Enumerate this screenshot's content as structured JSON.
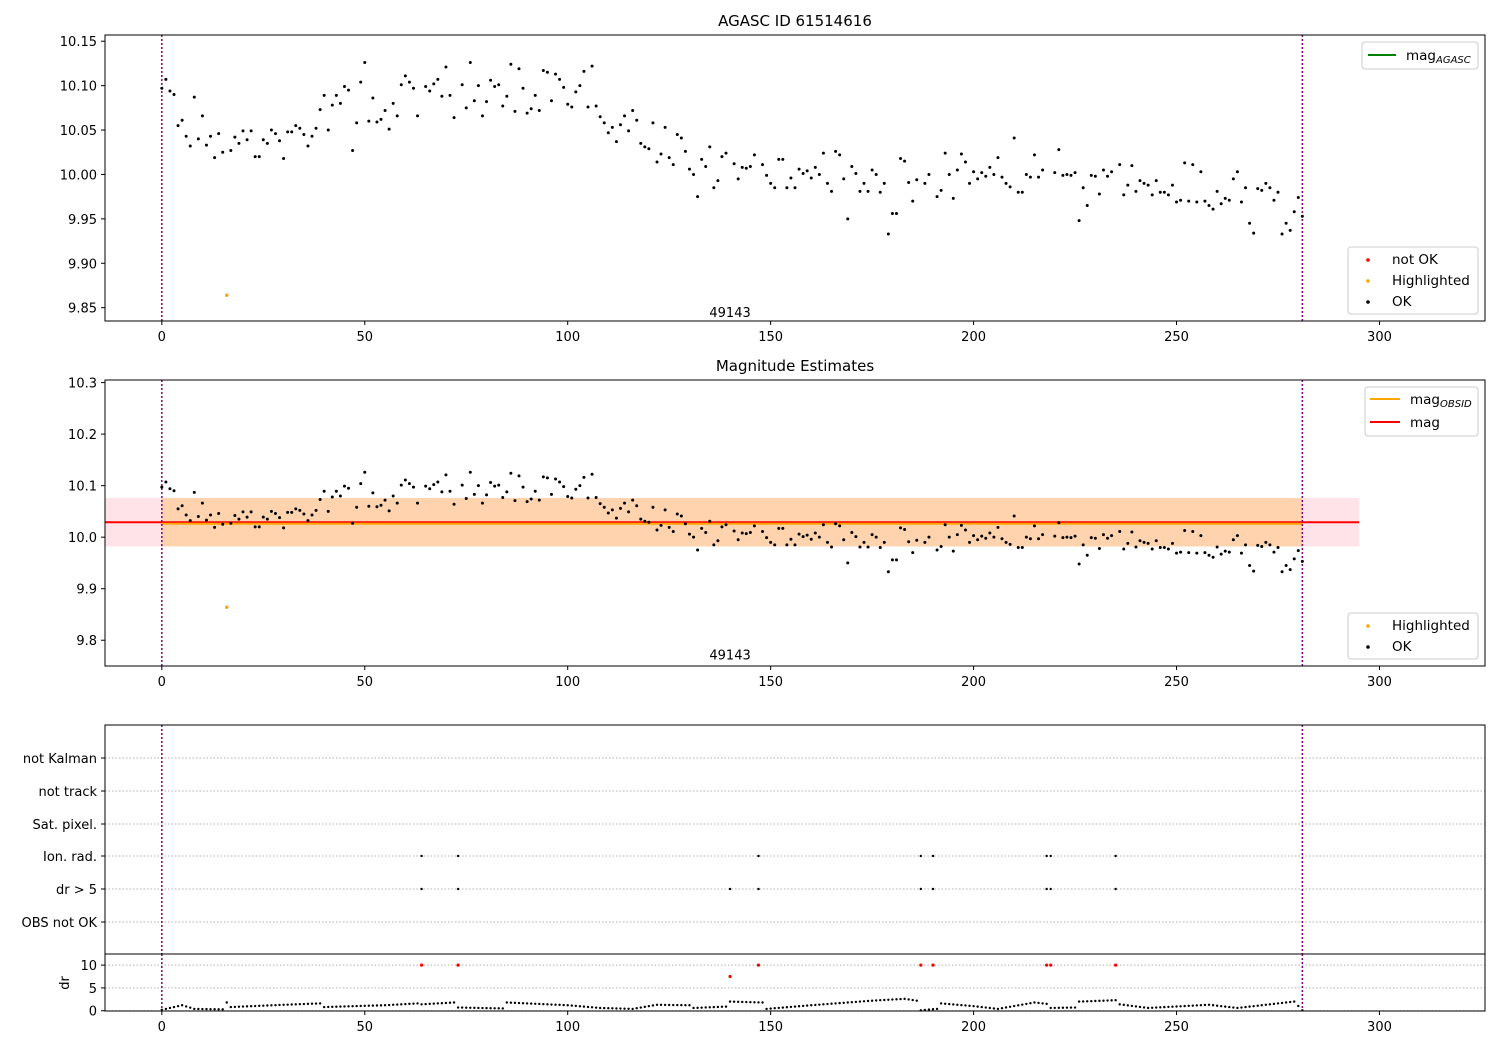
{
  "chart_data": [
    {
      "type": "scatter",
      "title": "AGASC ID 61514616",
      "xlim": [
        -14,
        326
      ],
      "ylim": [
        9.835,
        10.157
      ],
      "xticks": [
        0,
        50,
        100,
        150,
        200,
        250,
        300
      ],
      "yticks": [
        9.85,
        9.9,
        9.95,
        10.0,
        10.05,
        10.1,
        10.15
      ],
      "ytick_labels": [
        "9.85",
        "9.90",
        "9.95",
        "10.00",
        "10.05",
        "10.10",
        "10.15"
      ],
      "vlines": [
        0,
        281
      ],
      "annotation": {
        "x": 140,
        "y": 9.844,
        "text": "49143"
      },
      "legend_top": [
        {
          "label": "mag",
          "sub": "AGASC",
          "color": "#008000"
        }
      ],
      "legend_bottom": [
        {
          "label": "not OK",
          "color": "#ff0000"
        },
        {
          "label": "Highlighted",
          "color": "#ffa500"
        },
        {
          "label": "OK",
          "color": "#000000"
        }
      ],
      "highlighted": [
        [
          16,
          9.864
        ]
      ]
    },
    {
      "type": "scatter",
      "title": "Magnitude Estimates",
      "xlim": [
        -14,
        326
      ],
      "ylim": [
        9.75,
        10.305
      ],
      "xticks": [
        0,
        50,
        100,
        150,
        200,
        250,
        300
      ],
      "yticks": [
        9.8,
        9.9,
        10.0,
        10.1,
        10.2,
        10.3
      ],
      "ytick_labels": [
        "9.8",
        "9.9",
        "10.0",
        "10.1",
        "10.2",
        "10.3"
      ],
      "vlines": [
        0,
        281
      ],
      "annotation": {
        "x": 140,
        "y": 9.77,
        "text": "49143"
      },
      "mag": 10.029,
      "mag_band": [
        9.982,
        10.076
      ],
      "mag_obsid": 10.026,
      "mag_obsid_band": [
        9.982,
        10.076
      ],
      "legend_top": [
        {
          "label": "mag",
          "sub": "OBSID",
          "color": "#ffa500"
        },
        {
          "label": "mag",
          "sub": "",
          "color": "#ff0000"
        }
      ],
      "legend_bottom": [
        {
          "label": "Highlighted",
          "color": "#ffa500"
        },
        {
          "label": "OK",
          "color": "#000000"
        }
      ],
      "highlighted": [
        [
          16,
          9.864
        ]
      ]
    },
    {
      "type": "scatter",
      "title": "",
      "flag_labels": [
        "OBS not OK",
        "dr > 5",
        "Ion. rad.",
        "Sat. pixel.",
        "not track",
        "not Kalman"
      ],
      "flags": {
        "dr > 5": [
          64,
          73,
          140,
          147,
          187,
          190,
          218,
          219,
          235
        ],
        "Ion. rad.": [
          64,
          73,
          147,
          187,
          190,
          218,
          219,
          235
        ]
      },
      "dr_ylabel": "dr",
      "dr_yticks": [
        0,
        5,
        10
      ],
      "dr_xticks": [
        0,
        50,
        100,
        150,
        200,
        250,
        300
      ],
      "dr_outliers": [
        [
          64,
          10
        ],
        [
          73,
          10
        ],
        [
          140,
          7.5
        ],
        [
          147,
          10
        ],
        [
          187,
          10
        ],
        [
          190,
          10
        ],
        [
          218,
          10
        ],
        [
          219,
          10
        ],
        [
          235,
          10
        ]
      ],
      "dr_segments": [
        [
          0,
          0.2
        ],
        [
          5,
          1.2
        ],
        [
          8,
          0.4
        ],
        [
          15,
          0.3
        ],
        [
          16,
          1.8
        ],
        [
          17,
          0.8
        ],
        [
          30,
          1.3
        ],
        [
          39,
          1.6
        ],
        [
          40,
          0.8
        ],
        [
          55,
          1.2
        ],
        [
          63,
          1.6
        ],
        [
          64,
          1.4
        ],
        [
          72,
          1.8
        ],
        [
          73,
          0.7
        ],
        [
          84,
          0.5
        ],
        [
          85,
          1.8
        ],
        [
          100,
          1.2
        ],
        [
          108,
          0.6
        ],
        [
          116,
          0.4
        ],
        [
          122,
          1.3
        ],
        [
          130,
          1.2
        ],
        [
          131,
          0.6
        ],
        [
          139,
          0.9
        ],
        [
          140,
          2.0
        ],
        [
          148,
          1.8
        ],
        [
          149,
          0.4
        ],
        [
          160,
          1.2
        ],
        [
          175,
          2.2
        ],
        [
          183,
          2.6
        ],
        [
          186,
          2.2
        ],
        [
          187,
          0.1
        ],
        [
          191,
          0.4
        ],
        [
          192,
          1.6
        ],
        [
          200,
          1.0
        ],
        [
          206,
          0.4
        ],
        [
          215,
          1.8
        ],
        [
          218,
          1.5
        ],
        [
          219,
          0.6
        ],
        [
          225,
          0.7
        ],
        [
          226,
          2.0
        ],
        [
          235,
          2.3
        ],
        [
          236,
          1.4
        ],
        [
          243,
          0.6
        ],
        [
          258,
          1.3
        ],
        [
          265,
          0.6
        ],
        [
          275,
          1.6
        ],
        [
          279,
          2.0
        ],
        [
          281,
          0.1
        ]
      ]
    }
  ],
  "mag_series": [
    [
      0,
      10.097
    ],
    [
      1,
      10.107
    ],
    [
      2,
      10.094
    ],
    [
      3,
      10.09
    ],
    [
      4,
      10.055
    ],
    [
      5,
      10.061
    ],
    [
      6,
      10.043
    ],
    [
      7,
      10.032
    ],
    [
      8,
      10.087
    ],
    [
      9,
      10.04
    ],
    [
      10,
      10.066
    ],
    [
      11,
      10.033
    ],
    [
      12,
      10.043
    ],
    [
      13,
      10.019
    ],
    [
      14,
      10.046
    ],
    [
      15,
      10.025
    ],
    [
      17,
      10.027
    ],
    [
      18,
      10.042
    ],
    [
      19,
      10.035
    ],
    [
      20,
      10.049
    ],
    [
      21,
      10.039
    ],
    [
      22,
      10.049
    ],
    [
      23,
      10.02
    ],
    [
      24,
      10.02
    ],
    [
      25,
      10.039
    ],
    [
      26,
      10.035
    ],
    [
      27,
      10.05
    ],
    [
      28,
      10.046
    ],
    [
      29,
      10.038
    ],
    [
      30,
      10.018
    ],
    [
      31,
      10.048
    ],
    [
      32,
      10.048
    ],
    [
      33,
      10.055
    ],
    [
      34,
      10.052
    ],
    [
      35,
      10.045
    ],
    [
      36,
      10.032
    ],
    [
      37,
      10.043
    ],
    [
      38,
      10.052
    ],
    [
      39,
      10.073
    ],
    [
      40,
      10.089
    ],
    [
      41,
      10.05
    ],
    [
      42,
      10.078
    ],
    [
      43,
      10.089
    ],
    [
      44,
      10.08
    ],
    [
      45,
      10.099
    ],
    [
      46,
      10.095
    ],
    [
      47,
      10.027
    ],
    [
      48,
      10.058
    ],
    [
      49,
      10.104
    ],
    [
      50,
      10.126
    ],
    [
      51,
      10.06
    ],
    [
      52,
      10.086
    ],
    [
      53,
      10.059
    ],
    [
      54,
      10.062
    ],
    [
      55,
      10.072
    ],
    [
      56,
      10.051
    ],
    [
      57,
      10.08
    ],
    [
      58,
      10.066
    ],
    [
      59,
      10.101
    ],
    [
      60,
      10.111
    ],
    [
      61,
      10.104
    ],
    [
      62,
      10.097
    ],
    [
      63,
      10.066
    ],
    [
      65,
      10.099
    ],
    [
      66,
      10.094
    ],
    [
      67,
      10.102
    ],
    [
      68,
      10.107
    ],
    [
      69,
      10.088
    ],
    [
      70,
      10.121
    ],
    [
      71,
      10.089
    ],
    [
      72,
      10.064
    ],
    [
      74,
      10.101
    ],
    [
      75,
      10.075
    ],
    [
      76,
      10.126
    ],
    [
      77,
      10.083
    ],
    [
      78,
      10.1
    ],
    [
      79,
      10.066
    ],
    [
      80,
      10.082
    ],
    [
      81,
      10.106
    ],
    [
      82,
      10.099
    ],
    [
      83,
      10.101
    ],
    [
      84,
      10.077
    ],
    [
      85,
      10.088
    ],
    [
      86,
      10.124
    ],
    [
      87,
      10.071
    ],
    [
      88,
      10.119
    ],
    [
      89,
      10.097
    ],
    [
      90,
      10.069
    ],
    [
      91,
      10.074
    ],
    [
      92,
      10.089
    ],
    [
      93,
      10.072
    ],
    [
      94,
      10.117
    ],
    [
      95,
      10.115
    ],
    [
      96,
      10.083
    ],
    [
      97,
      10.113
    ],
    [
      98,
      10.107
    ],
    [
      99,
      10.098
    ],
    [
      100,
      10.079
    ],
    [
      101,
      10.076
    ],
    [
      102,
      10.093
    ],
    [
      103,
      10.1
    ],
    [
      104,
      10.116
    ],
    [
      105,
      10.076
    ],
    [
      106,
      10.122
    ],
    [
      107,
      10.077
    ],
    [
      108,
      10.065
    ],
    [
      109,
      10.058
    ],
    [
      110,
      10.047
    ],
    [
      111,
      10.053
    ],
    [
      112,
      10.037
    ],
    [
      113,
      10.056
    ],
    [
      114,
      10.066
    ],
    [
      115,
      10.049
    ],
    [
      116,
      10.072
    ],
    [
      117,
      10.061
    ],
    [
      118,
      10.035
    ],
    [
      119,
      10.031
    ],
    [
      120,
      10.029
    ],
    [
      121,
      10.058
    ],
    [
      122,
      10.014
    ],
    [
      123,
      10.023
    ],
    [
      124,
      10.053
    ],
    [
      125,
      10.019
    ],
    [
      126,
      10.011
    ],
    [
      127,
      10.045
    ],
    [
      128,
      10.041
    ],
    [
      129,
      10.026
    ],
    [
      130,
      10.006
    ],
    [
      131,
      10.0
    ],
    [
      132,
      9.975
    ],
    [
      133,
      10.017
    ],
    [
      134,
      10.009
    ],
    [
      135,
      10.031
    ],
    [
      136,
      9.985
    ],
    [
      137,
      9.993
    ],
    [
      138,
      10.02
    ],
    [
      139,
      10.024
    ],
    [
      141,
      10.012
    ],
    [
      142,
      9.995
    ],
    [
      143,
      10.008
    ],
    [
      144,
      10.007
    ],
    [
      145,
      10.009
    ],
    [
      146,
      10.022
    ],
    [
      148,
      10.011
    ],
    [
      149,
      9.999
    ],
    [
      150,
      9.99
    ],
    [
      151,
      9.985
    ],
    [
      152,
      10.017
    ],
    [
      153,
      10.017
    ],
    [
      154,
      9.985
    ],
    [
      155,
      9.996
    ],
    [
      156,
      9.985
    ],
    [
      157,
      10.006
    ],
    [
      158,
      10.001
    ],
    [
      159,
      10.004
    ],
    [
      160,
      9.996
    ],
    [
      161,
      10.008
    ],
    [
      162,
      10.0
    ],
    [
      163,
      10.024
    ],
    [
      164,
      9.99
    ],
    [
      165,
      9.981
    ],
    [
      166,
      10.026
    ],
    [
      167,
      10.022
    ],
    [
      168,
      9.995
    ],
    [
      169,
      9.95
    ],
    [
      170,
      10.009
    ],
    [
      171,
      10.001
    ],
    [
      172,
      9.981
    ],
    [
      173,
      9.99
    ],
    [
      174,
      9.981
    ],
    [
      175,
      10.005
    ],
    [
      176,
      10.0
    ],
    [
      177,
      9.98
    ],
    [
      178,
      9.99
    ],
    [
      179,
      9.933
    ],
    [
      180,
      9.956
    ],
    [
      181,
      9.956
    ],
    [
      182,
      10.018
    ],
    [
      183,
      10.015
    ],
    [
      184,
      9.991
    ],
    [
      185,
      9.97
    ],
    [
      186,
      9.994
    ],
    [
      188,
      9.99
    ],
    [
      189,
      10.0
    ],
    [
      191,
      9.975
    ],
    [
      192,
      9.982
    ],
    [
      193,
      10.024
    ],
    [
      194,
      10.0
    ],
    [
      195,
      9.973
    ],
    [
      196,
      10.005
    ],
    [
      197,
      10.023
    ],
    [
      198,
      10.014
    ],
    [
      199,
      9.99
    ],
    [
      200,
      10.003
    ],
    [
      201,
      9.995
    ],
    [
      202,
      10.002
    ],
    [
      203,
      9.998
    ],
    [
      204,
      10.008
    ],
    [
      205,
      10.0
    ],
    [
      206,
      10.019
    ],
    [
      207,
      9.997
    ],
    [
      208,
      9.99
    ],
    [
      209,
      9.986
    ],
    [
      210,
      10.041
    ],
    [
      211,
      9.98
    ],
    [
      212,
      9.98
    ],
    [
      213,
      10.0
    ],
    [
      214,
      9.997
    ],
    [
      215,
      10.022
    ],
    [
      216,
      9.997
    ],
    [
      217,
      10.005
    ],
    [
      220,
      10.002
    ],
    [
      221,
      10.028
    ],
    [
      222,
      9.999
    ],
    [
      223,
      10.0
    ],
    [
      224,
      9.999
    ],
    [
      225,
      10.002
    ],
    [
      226,
      9.948
    ],
    [
      227,
      9.985
    ],
    [
      228,
      9.965
    ],
    [
      229,
      9.999
    ],
    [
      230,
      9.998
    ],
    [
      231,
      9.978
    ],
    [
      232,
      10.005
    ],
    [
      233,
      9.998
    ],
    [
      234,
      10.003
    ],
    [
      236,
      10.011
    ],
    [
      237,
      9.977
    ],
    [
      238,
      9.988
    ],
    [
      239,
      10.01
    ],
    [
      240,
      9.981
    ],
    [
      241,
      9.993
    ],
    [
      242,
      9.99
    ],
    [
      243,
      9.988
    ],
    [
      244,
      9.977
    ],
    [
      245,
      9.993
    ],
    [
      246,
      9.98
    ],
    [
      247,
      9.98
    ],
    [
      248,
      9.977
    ],
    [
      249,
      9.988
    ],
    [
      250,
      9.969
    ],
    [
      251,
      9.971
    ],
    [
      252,
      10.013
    ],
    [
      253,
      9.97
    ],
    [
      254,
      10.011
    ],
    [
      255,
      9.969
    ],
    [
      256,
      10.003
    ],
    [
      257,
      9.97
    ],
    [
      258,
      9.965
    ],
    [
      259,
      9.961
    ],
    [
      260,
      9.981
    ],
    [
      261,
      9.967
    ],
    [
      262,
      9.973
    ],
    [
      263,
      9.971
    ],
    [
      264,
      9.995
    ],
    [
      265,
      10.003
    ],
    [
      266,
      9.969
    ],
    [
      267,
      9.985
    ],
    [
      268,
      9.945
    ],
    [
      269,
      9.934
    ],
    [
      270,
      9.984
    ],
    [
      271,
      9.982
    ],
    [
      272,
      9.99
    ],
    [
      273,
      9.985
    ],
    [
      274,
      9.971
    ],
    [
      275,
      9.98
    ],
    [
      276,
      9.933
    ],
    [
      277,
      9.945
    ],
    [
      278,
      9.937
    ],
    [
      279,
      9.958
    ],
    [
      280,
      9.974
    ],
    [
      281,
      9.953
    ]
  ]
}
